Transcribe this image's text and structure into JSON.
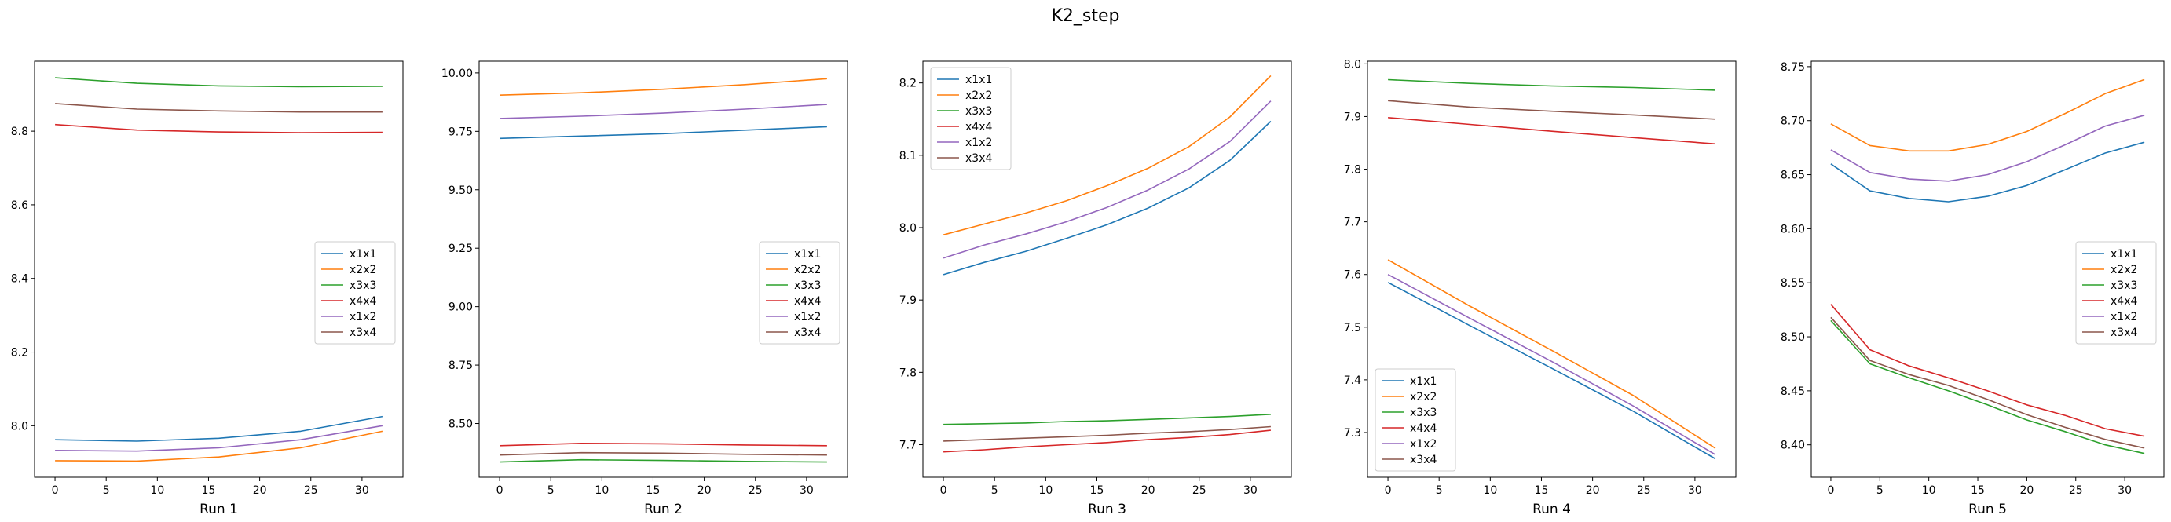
{
  "figure": {
    "suptitle": "K2_step"
  },
  "chart_data": [
    {
      "type": "line",
      "xlabel": "Run 1",
      "xlim": [
        -2,
        34
      ],
      "ylim": [
        7.86,
        8.99
      ],
      "x_ticks": [
        0,
        5,
        10,
        15,
        20,
        25,
        30
      ],
      "y_ticks": [
        8.0,
        8.2,
        8.4,
        8.6,
        8.8
      ],
      "y_tick_labels": [
        "8.0",
        "8.2",
        "8.4",
        "8.6",
        "8.8"
      ],
      "legend_loc": "center-right",
      "x": [
        0,
        8,
        16,
        24,
        32
      ],
      "series": [
        {
          "name": "x1x1",
          "color": "#1f77b4",
          "values": [
            7.962,
            7.958,
            7.966,
            7.985,
            8.025
          ]
        },
        {
          "name": "x2x2",
          "color": "#ff7f0e",
          "values": [
            7.905,
            7.904,
            7.915,
            7.94,
            7.985
          ]
        },
        {
          "name": "x3x3",
          "color": "#2ca02c",
          "values": [
            8.945,
            8.93,
            8.923,
            8.921,
            8.922
          ]
        },
        {
          "name": "x4x4",
          "color": "#d62728",
          "values": [
            8.818,
            8.803,
            8.798,
            8.796,
            8.797
          ]
        },
        {
          "name": "x1x2",
          "color": "#9467bd",
          "values": [
            7.933,
            7.931,
            7.94,
            7.962,
            8.0
          ]
        },
        {
          "name": "x3x4",
          "color": "#8c564b",
          "values": [
            8.875,
            8.86,
            8.855,
            8.852,
            8.852
          ]
        }
      ]
    },
    {
      "type": "line",
      "xlabel": "Run 2",
      "xlim": [
        -2,
        34
      ],
      "ylim": [
        8.27,
        10.05
      ],
      "x_ticks": [
        0,
        5,
        10,
        15,
        20,
        25,
        30
      ],
      "y_ticks": [
        8.5,
        8.75,
        9.0,
        9.25,
        9.5,
        9.75,
        10.0
      ],
      "y_tick_labels": [
        "8.50",
        "8.75",
        "9.00",
        "9.25",
        "9.50",
        "9.75",
        "10.00"
      ],
      "legend_loc": "center-right",
      "x": [
        0,
        8,
        16,
        24,
        32
      ],
      "series": [
        {
          "name": "x1x1",
          "color": "#1f77b4",
          "values": [
            9.72,
            9.73,
            9.74,
            9.755,
            9.77
          ]
        },
        {
          "name": "x2x2",
          "color": "#ff7f0e",
          "values": [
            9.905,
            9.915,
            9.93,
            9.95,
            9.975
          ]
        },
        {
          "name": "x3x3",
          "color": "#2ca02c",
          "values": [
            8.335,
            8.345,
            8.342,
            8.338,
            8.335
          ]
        },
        {
          "name": "x4x4",
          "color": "#d62728",
          "values": [
            8.405,
            8.415,
            8.413,
            8.408,
            8.405
          ]
        },
        {
          "name": "x1x2",
          "color": "#9467bd",
          "values": [
            9.805,
            9.815,
            9.828,
            9.845,
            9.865
          ]
        },
        {
          "name": "x3x4",
          "color": "#8c564b",
          "values": [
            8.365,
            8.375,
            8.373,
            8.368,
            8.365
          ]
        }
      ]
    },
    {
      "type": "line",
      "xlabel": "Run 3",
      "xlim": [
        -2,
        34
      ],
      "ylim": [
        7.655,
        8.23
      ],
      "x_ticks": [
        0,
        5,
        10,
        15,
        20,
        25,
        30
      ],
      "y_ticks": [
        7.7,
        7.8,
        7.9,
        8.0,
        8.1,
        8.2
      ],
      "y_tick_labels": [
        "7.7",
        "7.8",
        "7.9",
        "8.0",
        "8.1",
        "8.2"
      ],
      "legend_loc": "upper-left",
      "x": [
        0,
        4,
        8,
        12,
        16,
        20,
        24,
        28,
        32
      ],
      "series": [
        {
          "name": "x1x1",
          "color": "#1f77b4",
          "values": [
            7.935,
            7.952,
            7.967,
            7.985,
            8.004,
            8.027,
            8.055,
            8.093,
            8.147
          ]
        },
        {
          "name": "x2x2",
          "color": "#ff7f0e",
          "values": [
            7.99,
            8.005,
            8.02,
            8.037,
            8.058,
            8.082,
            8.112,
            8.153,
            8.21
          ]
        },
        {
          "name": "x3x3",
          "color": "#2ca02c",
          "values": [
            7.728,
            7.729,
            7.73,
            7.732,
            7.733,
            7.735,
            7.737,
            7.739,
            7.742
          ]
        },
        {
          "name": "x4x4",
          "color": "#d62728",
          "values": [
            7.69,
            7.693,
            7.697,
            7.7,
            7.703,
            7.707,
            7.71,
            7.714,
            7.72
          ]
        },
        {
          "name": "x1x2",
          "color": "#9467bd",
          "values": [
            7.958,
            7.976,
            7.991,
            8.008,
            8.028,
            8.052,
            8.081,
            8.119,
            8.175
          ]
        },
        {
          "name": "x3x4",
          "color": "#8c564b",
          "values": [
            7.705,
            7.707,
            7.709,
            7.711,
            7.713,
            7.716,
            7.718,
            7.721,
            7.725
          ]
        }
      ]
    },
    {
      "type": "line",
      "xlabel": "Run 4",
      "xlim": [
        -2,
        34
      ],
      "ylim": [
        7.215,
        8.005
      ],
      "x_ticks": [
        0,
        5,
        10,
        15,
        20,
        25,
        30
      ],
      "y_ticks": [
        7.3,
        7.4,
        7.5,
        7.6,
        7.7,
        7.8,
        7.9,
        8.0
      ],
      "y_tick_labels": [
        "7.3",
        "7.4",
        "7.5",
        "7.6",
        "7.7",
        "7.8",
        "7.9",
        "8.0"
      ],
      "legend_loc": "lower-left",
      "x": [
        0,
        8,
        16,
        24,
        32
      ],
      "series": [
        {
          "name": "x1x1",
          "color": "#1f77b4",
          "values": [
            7.585,
            7.503,
            7.422,
            7.34,
            7.25
          ]
        },
        {
          "name": "x2x2",
          "color": "#ff7f0e",
          "values": [
            7.628,
            7.54,
            7.456,
            7.37,
            7.27
          ]
        },
        {
          "name": "x3x3",
          "color": "#2ca02c",
          "values": [
            7.97,
            7.963,
            7.958,
            7.955,
            7.95
          ]
        },
        {
          "name": "x4x4",
          "color": "#d62728",
          "values": [
            7.898,
            7.885,
            7.872,
            7.86,
            7.848
          ]
        },
        {
          "name": "x1x2",
          "color": "#9467bd",
          "values": [
            7.6,
            7.517,
            7.435,
            7.35,
            7.258
          ]
        },
        {
          "name": "x3x4",
          "color": "#8c564b",
          "values": [
            7.93,
            7.918,
            7.91,
            7.903,
            7.895
          ]
        }
      ]
    },
    {
      "type": "line",
      "xlabel": "Run 5",
      "xlim": [
        -2,
        34
      ],
      "ylim": [
        8.37,
        8.755
      ],
      "x_ticks": [
        0,
        5,
        10,
        15,
        20,
        25,
        30
      ],
      "y_ticks": [
        8.4,
        8.45,
        8.5,
        8.55,
        8.6,
        8.65,
        8.7,
        8.75
      ],
      "y_tick_labels": [
        "8.40",
        "8.45",
        "8.50",
        "8.55",
        "8.60",
        "8.65",
        "8.70",
        "8.75"
      ],
      "legend_loc": "center-right",
      "x": [
        0,
        4,
        8,
        12,
        16,
        20,
        24,
        28,
        32
      ],
      "series": [
        {
          "name": "x1x1",
          "color": "#1f77b4",
          "values": [
            8.66,
            8.635,
            8.628,
            8.625,
            8.63,
            8.64,
            8.655,
            8.67,
            8.68
          ]
        },
        {
          "name": "x2x2",
          "color": "#ff7f0e",
          "values": [
            8.697,
            8.677,
            8.672,
            8.672,
            8.678,
            8.69,
            8.707,
            8.725,
            8.738
          ]
        },
        {
          "name": "x3x3",
          "color": "#2ca02c",
          "values": [
            8.515,
            8.475,
            8.462,
            8.45,
            8.437,
            8.423,
            8.412,
            8.4,
            8.392
          ]
        },
        {
          "name": "x4x4",
          "color": "#d62728",
          "values": [
            8.53,
            8.488,
            8.473,
            8.462,
            8.45,
            8.437,
            8.427,
            8.415,
            8.408
          ]
        },
        {
          "name": "x1x2",
          "color": "#9467bd",
          "values": [
            8.673,
            8.652,
            8.646,
            8.644,
            8.65,
            8.662,
            8.678,
            8.695,
            8.705
          ]
        },
        {
          "name": "x3x4",
          "color": "#8c564b",
          "values": [
            8.518,
            8.478,
            8.465,
            8.455,
            8.442,
            8.428,
            8.416,
            8.405,
            8.397
          ]
        }
      ]
    }
  ]
}
